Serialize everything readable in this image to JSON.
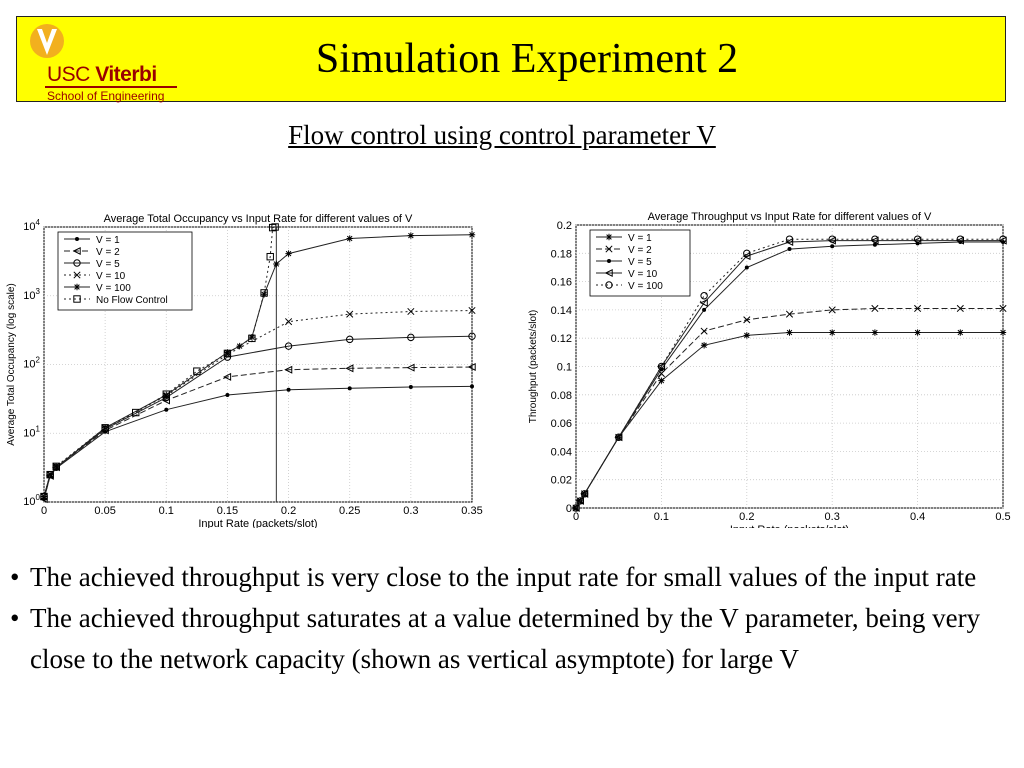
{
  "slide": {
    "title": "Simulation Experiment 2",
    "subtitle": "Flow control using control parameter V",
    "logo": {
      "brand_a": "USC",
      "brand_b": "Viterbi",
      "school": "School of Engineering"
    },
    "bullets": [
      "The achieved throughput is very close to the input rate for small values of the input rate",
      "The achieved throughput saturates at a value determined by the V parameter, being very close to the network capacity (shown as vertical asymptote) for large V"
    ],
    "bullet_glyph": "•",
    "colors": {
      "title_bar": "#ffff00",
      "brand": "#990000",
      "logo_gold": "#f2b01e"
    }
  },
  "chart_data": [
    {
      "type": "line",
      "title": "Average Total Occupancy vs Input Rate for different values of V",
      "xlabel": "Input Rate (packets/slot)",
      "ylabel": "Average Total Occupancy (log scale)",
      "xlim": [
        0,
        0.35
      ],
      "ylim": [
        1,
        10000
      ],
      "yscale": "log",
      "xticks": [
        "0",
        "0.05",
        "0.1",
        "0.15",
        "0.2",
        "0.25",
        "0.3",
        "0.35"
      ],
      "yticks": [
        "10^0",
        "10^1",
        "10^2",
        "10^3",
        "10^4"
      ],
      "grid": true,
      "legend_position": "top-left",
      "vertical_line_x": 0.19,
      "series": [
        {
          "name": "V = 1",
          "marker": "dot",
          "dash": "",
          "x": [
            0,
            0.005,
            0.01,
            0.05,
            0.1,
            0.15,
            0.2,
            0.25,
            0.3,
            0.35
          ],
          "y": [
            1.1,
            2.4,
            3.1,
            10.5,
            22,
            36,
            43,
            45,
            47,
            48
          ]
        },
        {
          "name": "V = 2",
          "marker": "triangle",
          "dash": "6,3",
          "x": [
            0,
            0.005,
            0.01,
            0.05,
            0.1,
            0.15,
            0.2,
            0.25,
            0.3,
            0.35
          ],
          "y": [
            1.1,
            2.4,
            3.2,
            11,
            30,
            66,
            84,
            88,
            90,
            92
          ]
        },
        {
          "name": "V = 5",
          "marker": "circle",
          "dash": "",
          "x": [
            0,
            0.005,
            0.01,
            0.05,
            0.1,
            0.15,
            0.2,
            0.25,
            0.3,
            0.35
          ],
          "y": [
            1.2,
            2.5,
            3.2,
            11.5,
            33,
            128,
            185,
            232,
            248,
            258
          ]
        },
        {
          "name": "V = 10",
          "marker": "x",
          "dash": "2,3",
          "x": [
            0,
            0.005,
            0.01,
            0.05,
            0.1,
            0.15,
            0.2,
            0.25,
            0.3,
            0.35
          ],
          "y": [
            1.2,
            2.5,
            3.3,
            12,
            35,
            140,
            420,
            540,
            590,
            610
          ]
        },
        {
          "name": "V = 100",
          "marker": "star",
          "dash": "",
          "x": [
            0,
            0.005,
            0.01,
            0.05,
            0.1,
            0.15,
            0.16,
            0.17,
            0.18,
            0.19,
            0.2,
            0.25,
            0.3,
            0.35
          ],
          "y": [
            1.2,
            2.5,
            3.2,
            12,
            36,
            150,
            185,
            250,
            1050,
            2900,
            4100,
            6800,
            7500,
            7700
          ]
        },
        {
          "name": "No Flow Control",
          "marker": "square",
          "dash": "2,3",
          "x": [
            0,
            0.005,
            0.01,
            0.05,
            0.075,
            0.1,
            0.125,
            0.15,
            0.17,
            0.18,
            0.185,
            0.187,
            0.189
          ],
          "y": [
            1.2,
            2.5,
            3.3,
            12,
            20,
            37,
            80,
            145,
            240,
            1100,
            3700,
            9800,
            10000
          ]
        }
      ]
    },
    {
      "type": "line",
      "title": "Average Throughput vs Input Rate for different values of V",
      "xlabel": "Input Rate (packets/slot)",
      "ylabel": "Throughput (packets/slot)",
      "xlim": [
        0,
        0.5
      ],
      "ylim": [
        0,
        0.2
      ],
      "xticks": [
        "0",
        "0.1",
        "0.2",
        "0.3",
        "0.4",
        "0.5"
      ],
      "yticks": [
        "0",
        "0.02",
        "0.04",
        "0.06",
        "0.08",
        "0.1",
        "0.12",
        "0.14",
        "0.16",
        "0.18",
        "0.2"
      ],
      "grid": true,
      "legend_position": "top-left",
      "series": [
        {
          "name": "V = 1",
          "marker": "star",
          "dash": "",
          "x": [
            0,
            0.005,
            0.01,
            0.05,
            0.1,
            0.15,
            0.2,
            0.25,
            0.3,
            0.35,
            0.4,
            0.45,
            0.5
          ],
          "y": [
            0,
            0.005,
            0.01,
            0.05,
            0.09,
            0.115,
            0.122,
            0.124,
            0.124,
            0.124,
            0.124,
            0.124,
            0.124
          ]
        },
        {
          "name": "V = 2",
          "marker": "x",
          "dash": "6,3",
          "x": [
            0,
            0.005,
            0.01,
            0.05,
            0.1,
            0.15,
            0.2,
            0.25,
            0.3,
            0.35,
            0.4,
            0.45,
            0.5
          ],
          "y": [
            0,
            0.005,
            0.01,
            0.05,
            0.095,
            0.125,
            0.133,
            0.137,
            0.14,
            0.141,
            0.141,
            0.141,
            0.141
          ]
        },
        {
          "name": "V = 5",
          "marker": "dot",
          "dash": "",
          "x": [
            0,
            0.005,
            0.01,
            0.05,
            0.1,
            0.15,
            0.2,
            0.25,
            0.3,
            0.35,
            0.4,
            0.45,
            0.5
          ],
          "y": [
            0,
            0.005,
            0.01,
            0.05,
            0.098,
            0.14,
            0.17,
            0.183,
            0.185,
            0.186,
            0.187,
            0.188,
            0.188
          ]
        },
        {
          "name": "V = 10",
          "marker": "triangle",
          "dash": "",
          "x": [
            0,
            0.005,
            0.01,
            0.05,
            0.1,
            0.15,
            0.2,
            0.25,
            0.3,
            0.35,
            0.4,
            0.45,
            0.5
          ],
          "y": [
            0,
            0.005,
            0.01,
            0.05,
            0.1,
            0.145,
            0.178,
            0.188,
            0.189,
            0.189,
            0.189,
            0.189,
            0.189
          ]
        },
        {
          "name": "V = 100",
          "marker": "circle",
          "dash": "2,3",
          "x": [
            0,
            0.005,
            0.01,
            0.05,
            0.1,
            0.15,
            0.2,
            0.25,
            0.3,
            0.35,
            0.4,
            0.45,
            0.5
          ],
          "y": [
            0,
            0.005,
            0.01,
            0.05,
            0.1,
            0.15,
            0.18,
            0.19,
            0.19,
            0.19,
            0.19,
            0.19,
            0.19
          ]
        }
      ]
    }
  ]
}
